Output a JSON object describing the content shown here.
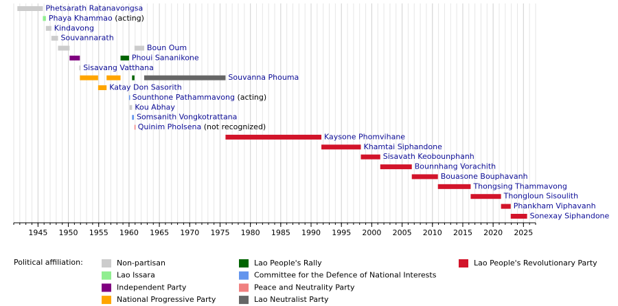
{
  "chart_data": {
    "type": "timeline",
    "xlim": [
      1941,
      2027
    ],
    "xticks": [
      1945,
      1950,
      1955,
      1960,
      1965,
      1970,
      1975,
      1980,
      1985,
      1990,
      1995,
      2000,
      2005,
      2010,
      2015,
      2020,
      2025
    ],
    "grid": true,
    "rows": [
      {
        "name": "Phetsarath Ratanavongsa",
        "spans": [
          {
            "start": 1941.6,
            "end": 1945.8,
            "color": "#cccccc"
          }
        ]
      },
      {
        "name": "Phaya Khammao",
        "note": "(acting)",
        "spans": [
          {
            "start": 1945.8,
            "end": 1946.3,
            "color": "#90ee90"
          }
        ]
      },
      {
        "name": "Kindavong",
        "spans": [
          {
            "start": 1946.3,
            "end": 1947.2,
            "color": "#cccccc"
          }
        ]
      },
      {
        "name": "Souvannarath",
        "spans": [
          {
            "start": 1947.2,
            "end": 1948.3,
            "color": "#cccccc"
          }
        ]
      },
      {
        "name": "Boun Oum",
        "spans": [
          {
            "start": 1948.3,
            "end": 1950.2,
            "color": "#cccccc"
          },
          {
            "start": 1960.9,
            "end": 1962.5,
            "color": "#cccccc"
          }
        ]
      },
      {
        "name": "Phoui Sananikone",
        "spans": [
          {
            "start": 1950.2,
            "end": 1951.9,
            "color": "#800080"
          },
          {
            "start": 1958.6,
            "end": 1960.0,
            "color": "#006400"
          }
        ]
      },
      {
        "name": "Sisavang Vatthana",
        "spans": [
          {
            "start": 1951.8,
            "end": 1952.0,
            "color": "#cccccc"
          }
        ]
      },
      {
        "name": "Souvanna Phouma",
        "spans": [
          {
            "start": 1951.9,
            "end": 1954.9,
            "color": "#ffa500"
          },
          {
            "start": 1956.3,
            "end": 1958.6,
            "color": "#ffa500"
          },
          {
            "start": 1960.5,
            "end": 1960.9,
            "color": "#006400"
          },
          {
            "start": 1962.5,
            "end": 1975.9,
            "color": "#666666"
          }
        ]
      },
      {
        "name": "Katay Don Sasorith",
        "spans": [
          {
            "start": 1954.9,
            "end": 1956.3,
            "color": "#ffa500"
          }
        ]
      },
      {
        "name": "Sounthone Pathammavong",
        "note": "(acting)",
        "spans": [
          {
            "start": 1960.0,
            "end": 1960.1,
            "color": "#6495ed"
          }
        ]
      },
      {
        "name": "Kou Abhay",
        "spans": [
          {
            "start": 1960.1,
            "end": 1960.5,
            "color": "#cccccc"
          }
        ]
      },
      {
        "name": "Somsanith Vongkotrattana",
        "spans": [
          {
            "start": 1960.5,
            "end": 1960.8,
            "color": "#6495ed"
          }
        ]
      },
      {
        "name": "Quinim Pholsena",
        "note": "(not recognized)",
        "spans": [
          {
            "start": 1960.9,
            "end": 1961.0,
            "color": "#f08080"
          }
        ]
      },
      {
        "name": "Kaysone Phomvihane",
        "spans": [
          {
            "start": 1975.9,
            "end": 1991.7,
            "color": "#d2142a"
          }
        ]
      },
      {
        "name": "Khamtai Siphandone",
        "spans": [
          {
            "start": 1991.7,
            "end": 1998.2,
            "color": "#d2142a"
          }
        ]
      },
      {
        "name": "Sisavath Keobounphanh",
        "spans": [
          {
            "start": 1998.2,
            "end": 2001.4,
            "color": "#d2142a"
          }
        ]
      },
      {
        "name": "Bounnhang Vorachith",
        "spans": [
          {
            "start": 2001.4,
            "end": 2006.6,
            "color": "#d2142a"
          }
        ]
      },
      {
        "name": "Bouasone Bouphavanh",
        "spans": [
          {
            "start": 2006.6,
            "end": 2010.9,
            "color": "#d2142a"
          }
        ]
      },
      {
        "name": "Thongsing Thammavong",
        "spans": [
          {
            "start": 2010.9,
            "end": 2016.3,
            "color": "#d2142a"
          }
        ]
      },
      {
        "name": "Thongloun Sisoulith",
        "spans": [
          {
            "start": 2016.3,
            "end": 2021.3,
            "color": "#d2142a"
          }
        ]
      },
      {
        "name": "Phankham Viphavanh",
        "spans": [
          {
            "start": 2021.3,
            "end": 2022.9,
            "color": "#d2142a"
          }
        ]
      },
      {
        "name": "Sonexay Siphandone",
        "spans": [
          {
            "start": 2022.9,
            "end": 2025.6,
            "color": "#d2142a"
          }
        ]
      }
    ],
    "legend_title": "Political affiliation:",
    "legend": [
      {
        "name": "Non-partisan",
        "color": "#cccccc"
      },
      {
        "name": "Lao Issara",
        "color": "#90ee90"
      },
      {
        "name": "Independent Party",
        "color": "#800080"
      },
      {
        "name": "National Progressive Party",
        "color": "#ffa500"
      },
      {
        "name": "Lao People's Rally",
        "color": "#006400"
      },
      {
        "name": "Committee for the Defence of National Interests",
        "color": "#6495ed"
      },
      {
        "name": "Peace and Neutrality Party",
        "color": "#f08080"
      },
      {
        "name": "Lao Neutralist Party",
        "color": "#666666"
      },
      {
        "name": "Lao People's Revolutionary Party",
        "color": "#d2142a"
      }
    ]
  }
}
